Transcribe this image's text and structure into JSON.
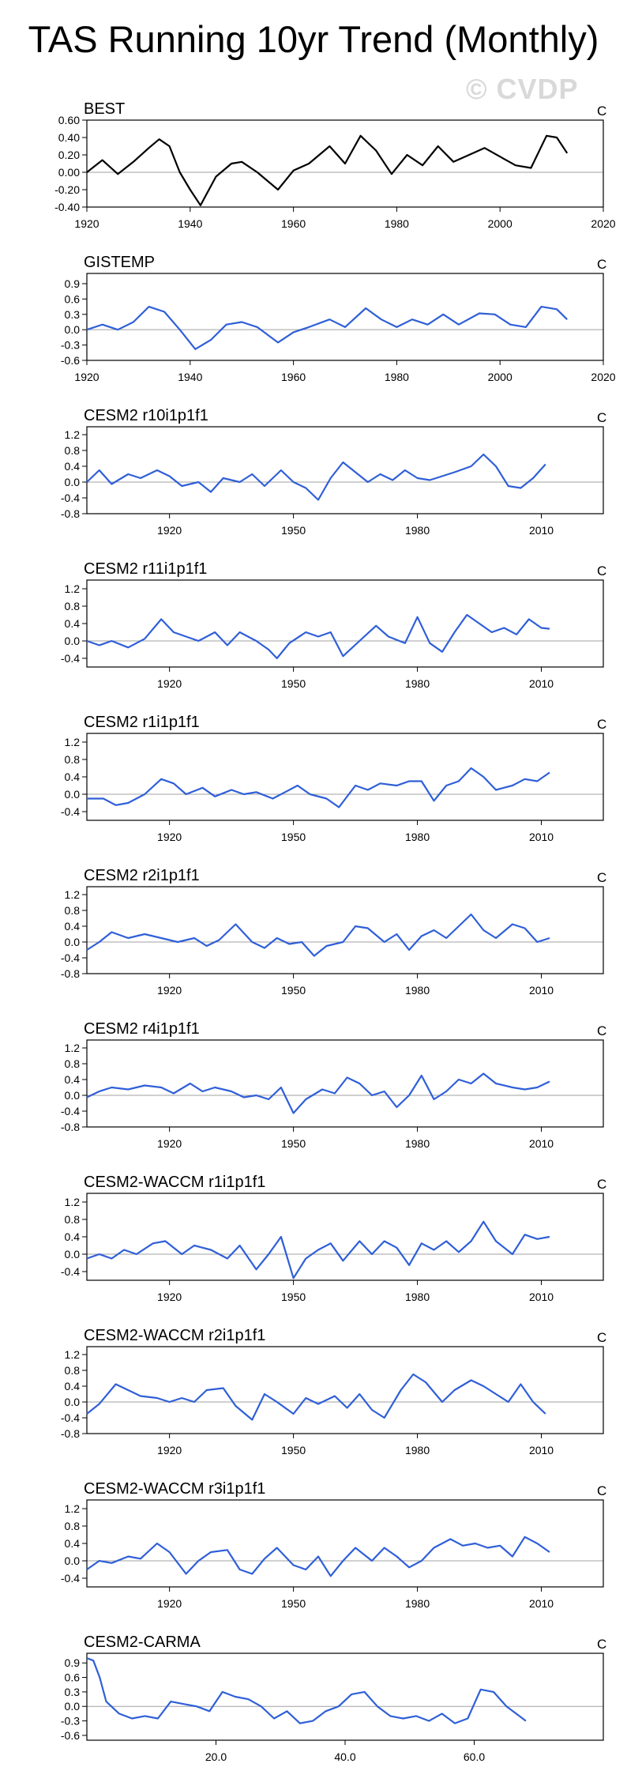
{
  "title": "TAS Running 10yr Trend (Monthly)",
  "watermark": "© CVDP",
  "chart_data": [
    {
      "type": "line",
      "title": "BEST",
      "units": "C",
      "color": "#000000",
      "xlim": [
        1920,
        2020
      ],
      "xticks": [
        "1920",
        "1940",
        "1960",
        "1980",
        "2000",
        "2020"
      ],
      "ylim": [
        -0.4,
        0.6
      ],
      "yticks": [
        "0.60",
        "0.40",
        "0.20",
        "0.00",
        "-0.20",
        "-0.40"
      ],
      "x": [
        1920,
        1923,
        1926,
        1929,
        1932,
        1934,
        1936,
        1938,
        1940,
        1942,
        1945,
        1948,
        1950,
        1953,
        1957,
        1960,
        1963,
        1967,
        1970,
        1973,
        1976,
        1979,
        1982,
        1985,
        1988,
        1991,
        1994,
        1997,
        2000,
        2003,
        2006,
        2009,
        2011,
        2013
      ],
      "values": [
        0.0,
        0.14,
        -0.02,
        0.12,
        0.28,
        0.38,
        0.3,
        0.0,
        -0.2,
        -0.38,
        -0.05,
        0.1,
        0.12,
        0.0,
        -0.2,
        0.02,
        0.1,
        0.3,
        0.1,
        0.42,
        0.25,
        -0.02,
        0.2,
        0.08,
        0.3,
        0.12,
        0.2,
        0.28,
        0.18,
        0.08,
        0.05,
        0.42,
        0.4,
        0.22
      ]
    },
    {
      "type": "line",
      "title": "GISTEMP",
      "units": "C",
      "color": "#2f5fd8",
      "xlim": [
        1920,
        2020
      ],
      "xticks": [
        "1920",
        "1940",
        "1960",
        "1980",
        "2000",
        "2020"
      ],
      "ylim": [
        -0.6,
        1.1
      ],
      "yticks": [
        "0.9",
        "0.6",
        "0.3",
        "0.0",
        "-0.3",
        "-0.6"
      ],
      "x": [
        1920,
        1923,
        1926,
        1929,
        1932,
        1935,
        1938,
        1941,
        1944,
        1947,
        1950,
        1953,
        1957,
        1960,
        1963,
        1967,
        1970,
        1974,
        1977,
        1980,
        1983,
        1986,
        1989,
        1992,
        1996,
        1999,
        2002,
        2005,
        2008,
        2011,
        2013
      ],
      "values": [
        0.0,
        0.1,
        0.0,
        0.15,
        0.45,
        0.35,
        0.0,
        -0.38,
        -0.2,
        0.1,
        0.15,
        0.05,
        -0.25,
        -0.05,
        0.05,
        0.2,
        0.05,
        0.42,
        0.2,
        0.05,
        0.2,
        0.1,
        0.3,
        0.1,
        0.32,
        0.3,
        0.1,
        0.05,
        0.45,
        0.4,
        0.2
      ]
    },
    {
      "type": "line",
      "title": "CESM2 r10i1p1f1",
      "units": "C",
      "color": "#2f5fd8",
      "xlim": [
        1900,
        2025
      ],
      "xticks": [
        "1920",
        "1950",
        "1980",
        "2010"
      ],
      "ylim": [
        -0.8,
        1.4
      ],
      "yticks": [
        "1.2",
        "0.8",
        "0.4",
        "0.0",
        "-0.4",
        "-0.8"
      ],
      "x": [
        1900,
        1903,
        1906,
        1910,
        1913,
        1917,
        1920,
        1923,
        1927,
        1930,
        1933,
        1937,
        1940,
        1943,
        1947,
        1950,
        1953,
        1956,
        1959,
        1962,
        1965,
        1968,
        1971,
        1974,
        1977,
        1980,
        1983,
        1986,
        1989,
        1993,
        1996,
        1999,
        2002,
        2005,
        2008,
        2011
      ],
      "values": [
        0.0,
        0.3,
        -0.05,
        0.2,
        0.1,
        0.3,
        0.15,
        -0.1,
        0.0,
        -0.25,
        0.1,
        0.0,
        0.2,
        -0.1,
        0.3,
        0.0,
        -0.15,
        -0.45,
        0.1,
        0.5,
        0.25,
        0.0,
        0.2,
        0.05,
        0.3,
        0.1,
        0.05,
        0.15,
        0.25,
        0.4,
        0.7,
        0.4,
        -0.1,
        -0.15,
        0.1,
        0.45
      ]
    },
    {
      "type": "line",
      "title": "CESM2 r11i1p1f1",
      "units": "C",
      "color": "#2f5fd8",
      "xlim": [
        1900,
        2025
      ],
      "xticks": [
        "1920",
        "1950",
        "1980",
        "2010"
      ],
      "ylim": [
        -0.6,
        1.4
      ],
      "yticks": [
        "1.2",
        "0.8",
        "0.4",
        "0.0",
        "-0.4"
      ],
      "x": [
        1900,
        1903,
        1906,
        1910,
        1914,
        1918,
        1921,
        1924,
        1927,
        1931,
        1934,
        1937,
        1941,
        1944,
        1946,
        1949,
        1953,
        1956,
        1959,
        1962,
        1966,
        1970,
        1973,
        1977,
        1980,
        1983,
        1986,
        1989,
        1992,
        1995,
        1998,
        2001,
        2004,
        2007,
        2010,
        2012
      ],
      "values": [
        0.0,
        -0.1,
        0.0,
        -0.15,
        0.05,
        0.5,
        0.2,
        0.1,
        0.0,
        0.2,
        -0.1,
        0.2,
        0.0,
        -0.2,
        -0.4,
        -0.05,
        0.2,
        0.1,
        0.2,
        -0.35,
        0.0,
        0.35,
        0.1,
        -0.05,
        0.55,
        -0.05,
        -0.25,
        0.2,
        0.6,
        0.4,
        0.2,
        0.3,
        0.15,
        0.5,
        0.3,
        0.28
      ]
    },
    {
      "type": "line",
      "title": "CESM2 r1i1p1f1",
      "units": "C",
      "color": "#2f5fd8",
      "xlim": [
        1900,
        2025
      ],
      "xticks": [
        "1920",
        "1950",
        "1980",
        "2010"
      ],
      "ylim": [
        -0.6,
        1.4
      ],
      "yticks": [
        "1.2",
        "0.8",
        "0.4",
        "0.0",
        "-0.4"
      ],
      "x": [
        1900,
        1904,
        1907,
        1910,
        1914,
        1918,
        1921,
        1924,
        1928,
        1931,
        1935,
        1938,
        1941,
        1945,
        1948,
        1951,
        1954,
        1958,
        1961,
        1965,
        1968,
        1971,
        1975,
        1978,
        1981,
        1984,
        1987,
        1990,
        1993,
        1996,
        1999,
        2003,
        2006,
        2009,
        2012
      ],
      "values": [
        -0.1,
        -0.1,
        -0.25,
        -0.2,
        0.0,
        0.35,
        0.25,
        0.0,
        0.15,
        -0.05,
        0.1,
        0.0,
        0.05,
        -0.1,
        0.05,
        0.2,
        0.0,
        -0.1,
        -0.3,
        0.2,
        0.1,
        0.25,
        0.2,
        0.3,
        0.3,
        -0.15,
        0.2,
        0.3,
        0.6,
        0.4,
        0.1,
        0.2,
        0.35,
        0.3,
        0.5
      ]
    },
    {
      "type": "line",
      "title": "CESM2 r2i1p1f1",
      "units": "C",
      "color": "#2f5fd8",
      "xlim": [
        1900,
        2025
      ],
      "xticks": [
        "1920",
        "1950",
        "1980",
        "2010"
      ],
      "ylim": [
        -0.8,
        1.4
      ],
      "yticks": [
        "1.2",
        "0.8",
        "0.4",
        "0.0",
        "-0.4",
        "-0.8"
      ],
      "x": [
        1900,
        1903,
        1906,
        1910,
        1914,
        1918,
        1922,
        1926,
        1929,
        1932,
        1936,
        1940,
        1943,
        1946,
        1949,
        1952,
        1955,
        1958,
        1962,
        1965,
        1968,
        1972,
        1975,
        1978,
        1981,
        1984,
        1987,
        1990,
        1993,
        1996,
        1999,
        2003,
        2006,
        2009,
        2012
      ],
      "values": [
        -0.2,
        0.0,
        0.25,
        0.1,
        0.2,
        0.1,
        0.0,
        0.1,
        -0.1,
        0.05,
        0.45,
        0.0,
        -0.15,
        0.1,
        -0.05,
        0.0,
        -0.35,
        -0.1,
        0.0,
        0.4,
        0.35,
        0.0,
        0.2,
        -0.2,
        0.15,
        0.3,
        0.1,
        0.4,
        0.7,
        0.3,
        0.1,
        0.45,
        0.35,
        0.0,
        0.1
      ]
    },
    {
      "type": "line",
      "title": "CESM2 r4i1p1f1",
      "units": "C",
      "color": "#2f5fd8",
      "xlim": [
        1900,
        2025
      ],
      "xticks": [
        "1920",
        "1950",
        "1980",
        "2010"
      ],
      "ylim": [
        -0.8,
        1.4
      ],
      "yticks": [
        "1.2",
        "0.8",
        "0.4",
        "0.0",
        "-0.4",
        "-0.8"
      ],
      "x": [
        1900,
        1903,
        1906,
        1910,
        1914,
        1918,
        1921,
        1925,
        1928,
        1931,
        1935,
        1938,
        1941,
        1944,
        1947,
        1950,
        1953,
        1957,
        1960,
        1963,
        1966,
        1969,
        1972,
        1975,
        1978,
        1981,
        1984,
        1987,
        1990,
        1993,
        1996,
        1999,
        2003,
        2006,
        2009,
        2012
      ],
      "values": [
        -0.05,
        0.1,
        0.2,
        0.15,
        0.25,
        0.2,
        0.05,
        0.3,
        0.1,
        0.2,
        0.1,
        -0.05,
        0.0,
        -0.1,
        0.2,
        -0.45,
        -0.1,
        0.15,
        0.05,
        0.45,
        0.3,
        0.0,
        0.1,
        -0.3,
        0.0,
        0.5,
        -0.1,
        0.1,
        0.4,
        0.3,
        0.55,
        0.3,
        0.2,
        0.15,
        0.2,
        0.35
      ]
    },
    {
      "type": "line",
      "title": "CESM2-WACCM r1i1p1f1",
      "units": "C",
      "color": "#2f5fd8",
      "xlim": [
        1900,
        2025
      ],
      "xticks": [
        "1920",
        "1950",
        "1980",
        "2010"
      ],
      "ylim": [
        -0.6,
        1.4
      ],
      "yticks": [
        "1.2",
        "0.8",
        "0.4",
        "0.0",
        "-0.4"
      ],
      "x": [
        1900,
        1903,
        1906,
        1909,
        1912,
        1916,
        1919,
        1923,
        1926,
        1930,
        1934,
        1937,
        1941,
        1944,
        1947,
        1950,
        1953,
        1956,
        1959,
        1962,
        1966,
        1969,
        1972,
        1975,
        1978,
        1981,
        1984,
        1987,
        1990,
        1993,
        1996,
        1999,
        2003,
        2006,
        2009,
        2012
      ],
      "values": [
        -0.1,
        0.0,
        -0.1,
        0.1,
        0.0,
        0.25,
        0.3,
        0.0,
        0.2,
        0.1,
        -0.1,
        0.2,
        -0.35,
        0.0,
        0.4,
        -0.55,
        -0.1,
        0.1,
        0.25,
        -0.15,
        0.3,
        0.0,
        0.3,
        0.15,
        -0.25,
        0.25,
        0.1,
        0.3,
        0.05,
        0.3,
        0.75,
        0.3,
        0.0,
        0.45,
        0.35,
        0.4
      ]
    },
    {
      "type": "line",
      "title": "CESM2-WACCM r2i1p1f1",
      "units": "C",
      "color": "#2f5fd8",
      "xlim": [
        1900,
        2025
      ],
      "xticks": [
        "1920",
        "1950",
        "1980",
        "2010"
      ],
      "ylim": [
        -0.8,
        1.4
      ],
      "yticks": [
        "1.2",
        "0.8",
        "0.4",
        "0.0",
        "-0.4",
        "-0.8"
      ],
      "x": [
        1900,
        1903,
        1907,
        1910,
        1913,
        1917,
        1920,
        1923,
        1926,
        1929,
        1933,
        1936,
        1940,
        1943,
        1946,
        1950,
        1953,
        1956,
        1960,
        1963,
        1966,
        1969,
        1972,
        1976,
        1979,
        1982,
        1986,
        1989,
        1993,
        1996,
        1999,
        2002,
        2005,
        2008,
        2011
      ],
      "values": [
        -0.3,
        -0.05,
        0.45,
        0.3,
        0.15,
        0.1,
        0.0,
        0.1,
        0.0,
        0.3,
        0.35,
        -0.1,
        -0.45,
        0.2,
        0.0,
        -0.3,
        0.1,
        -0.05,
        0.15,
        -0.15,
        0.2,
        -0.2,
        -0.4,
        0.3,
        0.7,
        0.5,
        0.0,
        0.3,
        0.55,
        0.4,
        0.2,
        0.0,
        0.45,
        0.0,
        -0.3
      ]
    },
    {
      "type": "line",
      "title": "CESM2-WACCM r3i1p1f1",
      "units": "C",
      "color": "#2f5fd8",
      "xlim": [
        1900,
        2025
      ],
      "xticks": [
        "1920",
        "1950",
        "1980",
        "2010"
      ],
      "ylim": [
        -0.6,
        1.4
      ],
      "yticks": [
        "1.2",
        "0.8",
        "0.4",
        "0.0",
        "-0.4"
      ],
      "x": [
        1900,
        1903,
        1906,
        1910,
        1913,
        1917,
        1920,
        1924,
        1927,
        1930,
        1934,
        1937,
        1940,
        1943,
        1946,
        1950,
        1953,
        1956,
        1959,
        1962,
        1965,
        1969,
        1972,
        1975,
        1978,
        1981,
        1984,
        1988,
        1991,
        1994,
        1997,
        2000,
        2003,
        2006,
        2009,
        2012
      ],
      "values": [
        -0.2,
        0.0,
        -0.05,
        0.1,
        0.05,
        0.4,
        0.2,
        -0.3,
        0.0,
        0.2,
        0.25,
        -0.2,
        -0.3,
        0.05,
        0.3,
        -0.1,
        -0.2,
        0.1,
        -0.35,
        0.0,
        0.3,
        0.0,
        0.3,
        0.1,
        -0.15,
        0.0,
        0.3,
        0.5,
        0.35,
        0.4,
        0.3,
        0.35,
        0.1,
        0.55,
        0.4,
        0.2
      ]
    },
    {
      "type": "line",
      "title": "CESM2-CARMA",
      "units": "C",
      "color": "#2f5fd8",
      "xlim": [
        0,
        80
      ],
      "xticks": [
        "20.0",
        "40.0",
        "60.0"
      ],
      "ylim": [
        -0.7,
        1.1
      ],
      "yticks": [
        "0.9",
        "0.6",
        "0.3",
        "0.0",
        "-0.3",
        "-0.6"
      ],
      "x": [
        0,
        1,
        2,
        3,
        5,
        7,
        9,
        11,
        13,
        15,
        17,
        19,
        21,
        23,
        25,
        27,
        29,
        31,
        33,
        35,
        37,
        39,
        41,
        43,
        45,
        47,
        49,
        51,
        53,
        55,
        57,
        59,
        61,
        63,
        65,
        67,
        68
      ],
      "values": [
        1.0,
        0.95,
        0.6,
        0.1,
        -0.15,
        -0.25,
        -0.2,
        -0.25,
        0.1,
        0.05,
        0.0,
        -0.1,
        0.3,
        0.2,
        0.15,
        0.0,
        -0.25,
        -0.1,
        -0.35,
        -0.3,
        -0.1,
        0.0,
        0.25,
        0.3,
        0.0,
        -0.2,
        -0.25,
        -0.2,
        -0.3,
        -0.15,
        -0.35,
        -0.25,
        0.35,
        0.3,
        0.0,
        -0.2,
        -0.3
      ]
    }
  ]
}
